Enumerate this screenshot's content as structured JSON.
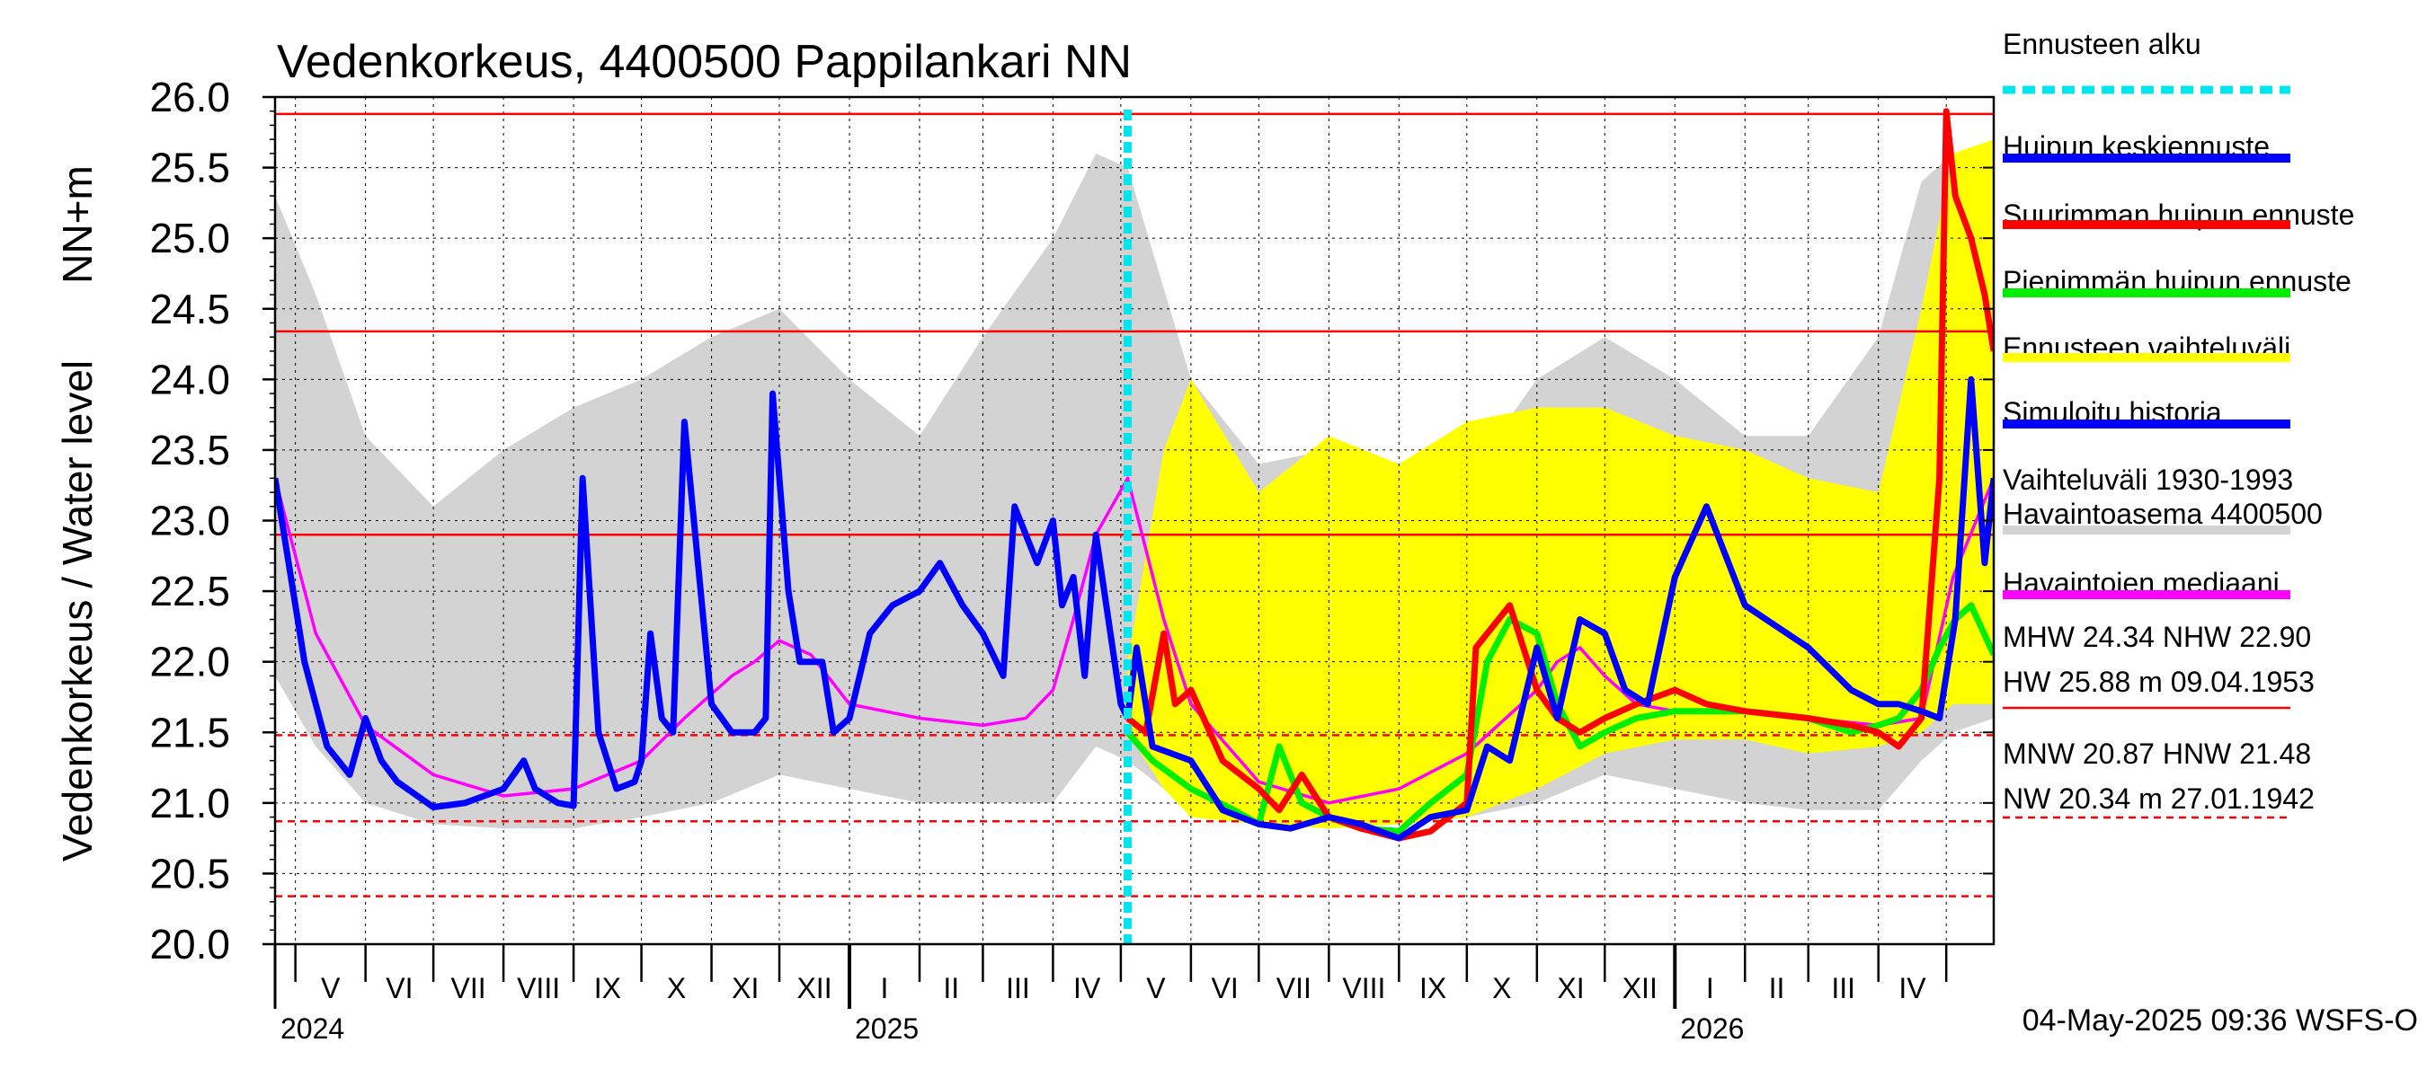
{
  "chart_data": {
    "type": "line",
    "title": "Vedenkorkeus, 4400500 Pappilankari NN",
    "ylabel_top": "NN+m",
    "ylabel_bottom": "Vedenkorkeus / Water level",
    "ylim": [
      20.0,
      26.0
    ],
    "yticks": [
      "20.0",
      "20.5",
      "21.0",
      "21.5",
      "22.0",
      "22.5",
      "23.0",
      "23.5",
      "24.0",
      "24.5",
      "25.0",
      "25.5",
      "26.0"
    ],
    "x_range": [
      "2024-04-22",
      "2026-05-22"
    ],
    "months": [
      {
        "label": "V",
        "start": "2024-05-01"
      },
      {
        "label": "VI",
        "start": "2024-06-01"
      },
      {
        "label": "VII",
        "start": "2024-07-01"
      },
      {
        "label": "VIII",
        "start": "2024-08-01"
      },
      {
        "label": "IX",
        "start": "2024-09-01"
      },
      {
        "label": "X",
        "start": "2024-10-01"
      },
      {
        "label": "XI",
        "start": "2024-11-01"
      },
      {
        "label": "XII",
        "start": "2024-12-01"
      },
      {
        "label": "I",
        "start": "2025-01-01"
      },
      {
        "label": "II",
        "start": "2025-02-01"
      },
      {
        "label": "III",
        "start": "2025-03-01"
      },
      {
        "label": "IV",
        "start": "2025-04-01"
      },
      {
        "label": "V",
        "start": "2025-05-01"
      },
      {
        "label": "VI",
        "start": "2025-06-01"
      },
      {
        "label": "VII",
        "start": "2025-07-01"
      },
      {
        "label": "VIII",
        "start": "2025-08-01"
      },
      {
        "label": "IX",
        "start": "2025-09-01"
      },
      {
        "label": "X",
        "start": "2025-10-01"
      },
      {
        "label": "XI",
        "start": "2025-11-01"
      },
      {
        "label": "XII",
        "start": "2025-12-01"
      },
      {
        "label": "I",
        "start": "2026-01-01"
      },
      {
        "label": "II",
        "start": "2026-02-01"
      },
      {
        "label": "III",
        "start": "2026-03-01"
      },
      {
        "label": "IV",
        "start": "2026-04-01"
      },
      {
        "label": "",
        "start": "2026-05-01"
      }
    ],
    "years": [
      {
        "label": "2024",
        "date": "2024-04-22"
      },
      {
        "label": "2025",
        "date": "2025-01-01"
      },
      {
        "label": "2026",
        "date": "2026-01-01"
      }
    ],
    "grid": true,
    "forecast_start": "2025-05-04",
    "reference_lines": [
      {
        "value": 25.88,
        "style": "solid",
        "color": "#ff0000"
      },
      {
        "value": 24.34,
        "style": "solid",
        "color": "#ff0000"
      },
      {
        "value": 22.9,
        "style": "solid",
        "color": "#ff0000"
      },
      {
        "value": 21.48,
        "style": "dashed",
        "color": "#ff0000"
      },
      {
        "value": 20.87,
        "style": "dashed",
        "color": "#ff0000"
      },
      {
        "value": 20.34,
        "style": "dashed",
        "color": "#ff0000"
      }
    ],
    "hist_range": {
      "color": "#d3d3d3",
      "x": [
        "2024-04-22",
        "2024-05-10",
        "2024-06-01",
        "2024-07-01",
        "2024-08-01",
        "2024-09-01",
        "2024-10-01",
        "2024-11-01",
        "2024-12-01",
        "2025-01-01",
        "2025-02-01",
        "2025-03-01",
        "2025-04-01",
        "2025-04-20",
        "2025-05-04",
        "2025-06-01",
        "2025-07-01",
        "2025-08-01",
        "2025-09-01",
        "2025-10-01",
        "2025-11-01",
        "2025-12-01",
        "2026-01-01",
        "2026-02-01",
        "2026-03-01",
        "2026-04-01",
        "2026-04-20",
        "2026-05-04",
        "2026-05-22"
      ],
      "upper": [
        25.3,
        24.6,
        23.6,
        23.1,
        23.5,
        23.8,
        24.0,
        24.3,
        24.5,
        24.0,
        23.6,
        24.3,
        25.0,
        25.6,
        25.5,
        24.0,
        23.4,
        23.5,
        23.2,
        23.3,
        24.0,
        24.3,
        24.0,
        23.6,
        23.6,
        24.3,
        25.4,
        25.6,
        25.4
      ],
      "lower": [
        21.9,
        21.4,
        21.0,
        20.85,
        20.82,
        20.82,
        20.9,
        21.0,
        21.2,
        21.1,
        21.0,
        21.0,
        21.0,
        21.4,
        21.3,
        20.95,
        20.85,
        20.82,
        20.85,
        20.9,
        21.0,
        21.2,
        21.1,
        21.0,
        20.95,
        20.95,
        21.3,
        21.5,
        21.6
      ]
    },
    "forecast_range": {
      "color": "#ffff00",
      "x": [
        "2025-05-04",
        "2025-05-20",
        "2025-06-01",
        "2025-07-01",
        "2025-08-01",
        "2025-09-01",
        "2025-10-01",
        "2025-11-01",
        "2025-12-01",
        "2026-01-01",
        "2026-02-01",
        "2026-03-01",
        "2026-04-01",
        "2026-04-20",
        "2026-05-04",
        "2026-05-22"
      ],
      "upper": [
        22.0,
        23.5,
        24.0,
        23.2,
        23.6,
        23.4,
        23.7,
        23.8,
        23.8,
        23.6,
        23.5,
        23.3,
        23.2,
        24.5,
        25.6,
        25.7
      ],
      "lower": [
        21.5,
        21.1,
        20.9,
        20.85,
        20.82,
        20.85,
        20.9,
        21.1,
        21.35,
        21.45,
        21.45,
        21.35,
        21.4,
        21.5,
        21.7,
        21.7
      ]
    },
    "series": [
      {
        "name": "Havaintojen mediaani",
        "color": "#ff00ff",
        "x": [
          "2024-04-22",
          "2024-05-10",
          "2024-06-01",
          "2024-07-01",
          "2024-08-01",
          "2024-09-01",
          "2024-10-01",
          "2024-10-20",
          "2024-11-10",
          "2024-11-20",
          "2024-12-01",
          "2024-12-15",
          "2025-01-01",
          "2025-02-01",
          "2025-03-01",
          "2025-03-20",
          "2025-04-01",
          "2025-04-10",
          "2025-04-20",
          "2025-05-04",
          "2025-05-20",
          "2025-06-01",
          "2025-07-01",
          "2025-08-01",
          "2025-09-01",
          "2025-10-01",
          "2025-11-01",
          "2025-11-10",
          "2025-11-20",
          "2025-12-01",
          "2025-12-15",
          "2026-01-01",
          "2026-02-01",
          "2026-03-01",
          "2026-04-01",
          "2026-04-20",
          "2026-05-04",
          "2026-05-22"
        ],
        "y": [
          23.3,
          22.2,
          21.55,
          21.2,
          21.05,
          21.1,
          21.3,
          21.6,
          21.9,
          22.0,
          22.15,
          22.05,
          21.7,
          21.6,
          21.55,
          21.6,
          21.8,
          22.3,
          22.9,
          23.3,
          22.3,
          21.7,
          21.15,
          21.0,
          21.1,
          21.35,
          21.8,
          22.0,
          22.1,
          21.9,
          21.7,
          21.65,
          21.65,
          21.6,
          21.55,
          21.6,
          22.6,
          23.3
        ]
      },
      {
        "name": "Simuloitu historia",
        "color": "#0000ff",
        "x": [
          "2024-04-22",
          "2024-05-05",
          "2024-05-15",
          "2024-05-25",
          "2024-06-01",
          "2024-06-08",
          "2024-06-15",
          "2024-07-01",
          "2024-07-15",
          "2024-08-01",
          "2024-08-10",
          "2024-08-15",
          "2024-08-25",
          "2024-09-01",
          "2024-09-05",
          "2024-09-12",
          "2024-09-20",
          "2024-09-28",
          "2024-10-01",
          "2024-10-05",
          "2024-10-10",
          "2024-10-15",
          "2024-10-20",
          "2024-11-01",
          "2024-11-10",
          "2024-11-20",
          "2024-11-25",
          "2024-11-28",
          "2024-12-05",
          "2024-12-10",
          "2024-12-20",
          "2024-12-25",
          "2025-01-01",
          "2025-01-10",
          "2025-01-20",
          "2025-02-01",
          "2025-02-10",
          "2025-02-20",
          "2025-03-01",
          "2025-03-10",
          "2025-03-15",
          "2025-03-25",
          "2025-04-01",
          "2025-04-05",
          "2025-04-10",
          "2025-04-15",
          "2025-04-20",
          "2025-05-01",
          "2025-05-04"
        ],
        "y": [
          23.3,
          22.0,
          21.4,
          21.2,
          21.6,
          21.3,
          21.15,
          20.97,
          21.0,
          21.1,
          21.3,
          21.1,
          21.0,
          20.98,
          23.3,
          21.5,
          21.1,
          21.15,
          21.3,
          22.2,
          21.6,
          21.5,
          23.7,
          21.7,
          21.5,
          21.5,
          21.6,
          23.9,
          22.5,
          22.0,
          22.0,
          21.5,
          21.6,
          22.2,
          22.4,
          22.5,
          22.7,
          22.4,
          22.2,
          21.9,
          23.1,
          22.7,
          23.0,
          22.4,
          22.6,
          21.9,
          22.9,
          21.7,
          21.6
        ]
      },
      {
        "name": "Huipun keskiennuste",
        "color": "#0000ff",
        "x": [
          "2025-05-04",
          "2025-05-08",
          "2025-05-15",
          "2025-06-01",
          "2025-06-15",
          "2025-07-01",
          "2025-07-15",
          "2025-08-01",
          "2025-08-15",
          "2025-09-01",
          "2025-09-15",
          "2025-10-01",
          "2025-10-10",
          "2025-10-20",
          "2025-11-01",
          "2025-11-10",
          "2025-11-20",
          "2025-12-01",
          "2025-12-10",
          "2025-12-20",
          "2026-01-01",
          "2026-01-15",
          "2026-02-01",
          "2026-03-01",
          "2026-03-20",
          "2026-04-01",
          "2026-04-10",
          "2026-04-20",
          "2026-04-28",
          "2026-05-05",
          "2026-05-12",
          "2026-05-18",
          "2026-05-22"
        ],
        "y": [
          21.6,
          22.1,
          21.4,
          21.3,
          20.95,
          20.85,
          20.82,
          20.9,
          20.85,
          20.75,
          20.9,
          20.95,
          21.4,
          21.3,
          22.1,
          21.6,
          22.3,
          22.2,
          21.8,
          21.7,
          22.6,
          23.1,
          22.4,
          22.1,
          21.8,
          21.7,
          21.7,
          21.65,
          21.6,
          22.3,
          24.0,
          22.7,
          23.3
        ]
      },
      {
        "name": "Suurimman huipun ennuste",
        "color": "#ff0000",
        "x": [
          "2025-05-04",
          "2025-05-12",
          "2025-05-20",
          "2025-05-25",
          "2025-06-01",
          "2025-06-15",
          "2025-07-01",
          "2025-07-10",
          "2025-07-20",
          "2025-08-01",
          "2025-08-15",
          "2025-09-01",
          "2025-09-15",
          "2025-10-01",
          "2025-10-05",
          "2025-10-15",
          "2025-10-20",
          "2025-11-01",
          "2025-11-10",
          "2025-11-20",
          "2025-12-01",
          "2025-12-15",
          "2026-01-01",
          "2026-01-15",
          "2026-02-01",
          "2026-03-01",
          "2026-03-20",
          "2026-04-01",
          "2026-04-10",
          "2026-04-20",
          "2026-04-28",
          "2026-05-01",
          "2026-05-05",
          "2026-05-12",
          "2026-05-18",
          "2026-05-22"
        ],
        "y": [
          21.6,
          21.5,
          22.2,
          21.7,
          21.8,
          21.3,
          21.1,
          20.95,
          21.2,
          20.9,
          20.82,
          20.75,
          20.8,
          21.0,
          22.1,
          22.3,
          22.4,
          21.8,
          21.6,
          21.5,
          21.6,
          21.7,
          21.8,
          21.7,
          21.65,
          21.6,
          21.55,
          21.5,
          21.4,
          21.6,
          23.3,
          25.9,
          25.3,
          25.0,
          24.6,
          24.2
        ]
      },
      {
        "name": "Pienimmän huipun ennuste",
        "color": "#00ee00",
        "x": [
          "2025-05-04",
          "2025-05-15",
          "2025-06-01",
          "2025-06-20",
          "2025-07-01",
          "2025-07-10",
          "2025-07-20",
          "2025-08-01",
          "2025-08-15",
          "2025-09-01",
          "2025-09-15",
          "2025-10-01",
          "2025-10-10",
          "2025-10-20",
          "2025-11-01",
          "2025-11-10",
          "2025-11-20",
          "2025-12-01",
          "2025-12-15",
          "2026-01-01",
          "2026-02-01",
          "2026-03-01",
          "2026-03-20",
          "2026-04-01",
          "2026-04-10",
          "2026-04-20",
          "2026-04-28",
          "2026-05-05",
          "2026-05-12",
          "2026-05-22"
        ],
        "y": [
          21.5,
          21.3,
          21.1,
          20.95,
          20.85,
          21.4,
          21.0,
          20.9,
          20.82,
          20.8,
          21.0,
          21.2,
          22.0,
          22.3,
          22.2,
          21.7,
          21.4,
          21.5,
          21.6,
          21.65,
          21.65,
          21.6,
          21.5,
          21.55,
          21.6,
          21.8,
          22.1,
          22.3,
          22.4,
          22.05
        ]
      }
    ],
    "legend": [
      {
        "label": "Ennusteen alku",
        "color": "#00e5ee",
        "style": "dotted"
      },
      {
        "label": "Huipun keskiennuste",
        "color": "#0000ff",
        "style": "solid"
      },
      {
        "label": "Suurimman huipun ennuste",
        "color": "#ff0000",
        "style": "solid"
      },
      {
        "label": "Pienimmän huipun ennuste",
        "color": "#00ee00",
        "style": "solid"
      },
      {
        "label": "Ennusteen vaihteluväli",
        "color": "#ffff00",
        "style": "solid"
      },
      {
        "label": "Simuloitu historia",
        "color": "#0000ff",
        "style": "solid"
      },
      {
        "label": "Vaihteluväli 1930-1993",
        "label2": " Havaintoasema 4400500",
        "color": "#d3d3d3",
        "style": "solid"
      },
      {
        "label": "Havaintojen mediaani",
        "color": "#ff00ff",
        "style": "solid"
      }
    ],
    "stats": [
      {
        "text": "MHW  24.34 NHW  22.90",
        "text2": "HW  25.88 m 09.04.1953",
        "color": "#ff0000",
        "style": "solid"
      },
      {
        "text": "MNW  20.87 HNW  21.48",
        "text2": "NW  20.34 m 27.01.1942",
        "color": "#ff0000",
        "style": "dashed"
      }
    ],
    "footer": "04-May-2025 09:36 WSFS-O"
  }
}
